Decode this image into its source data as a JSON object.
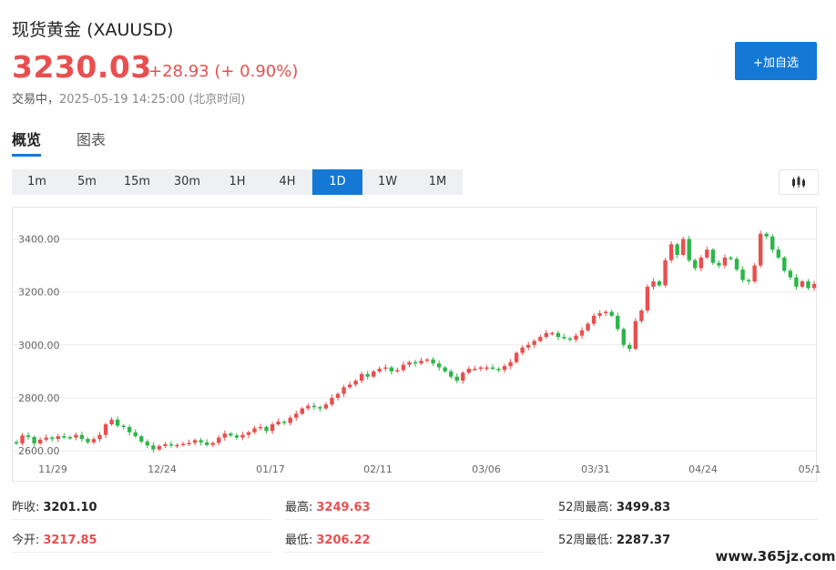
{
  "header": {
    "name": "现货黄金",
    "symbol": "(XAUUSD)",
    "price": "3230.03",
    "change": "+28.93 (+ 0.90%)",
    "status": "交易中，",
    "datetime": "2025-05-19 14:25:00",
    "timezone": "(北京时间)",
    "add_button": "+加自选"
  },
  "tabs": [
    {
      "label": "概览",
      "active": true
    },
    {
      "label": "图表",
      "active": false
    }
  ],
  "periods": [
    {
      "label": "1m",
      "active": false
    },
    {
      "label": "5m",
      "active": false
    },
    {
      "label": "15m",
      "active": false
    },
    {
      "label": "30m",
      "active": false
    },
    {
      "label": "1H",
      "active": false
    },
    {
      "label": "4H",
      "active": false
    },
    {
      "label": "1D",
      "active": true
    },
    {
      "label": "1W",
      "active": false
    },
    {
      "label": "1M",
      "active": false
    }
  ],
  "chart_type_icon": "candlestick-icon",
  "chart_data": {
    "type": "candlestick",
    "y_ticks": [
      "3400.00",
      "3200.00",
      "3000.00",
      "2800.00",
      "2600.00"
    ],
    "x_ticks": [
      "11/29",
      "12/24",
      "01/17",
      "02/11",
      "03/06",
      "03/31",
      "04/24",
      "05/1"
    ],
    "ylim": [
      2590,
      3505
    ],
    "up_color": "#e94f4f",
    "down_color": "#2db64a",
    "grid": true,
    "series_close": [
      2628,
      2658,
      2652,
      2628,
      2642,
      2650,
      2645,
      2655,
      2652,
      2650,
      2660,
      2645,
      2632,
      2644,
      2660,
      2700,
      2718,
      2695,
      2690,
      2670,
      2655,
      2635,
      2620,
      2605,
      2618,
      2625,
      2622,
      2622,
      2626,
      2630,
      2640,
      2632,
      2622,
      2630,
      2650,
      2665,
      2658,
      2650,
      2660,
      2670,
      2685,
      2690,
      2675,
      2700,
      2710,
      2705,
      2725,
      2740,
      2760,
      2770,
      2765,
      2760,
      2775,
      2800,
      2815,
      2840,
      2850,
      2865,
      2890,
      2880,
      2900,
      2910,
      2915,
      2900,
      2905,
      2925,
      2935,
      2930,
      2940,
      2945,
      2930,
      2915,
      2900,
      2880,
      2865,
      2895,
      2910,
      2910,
      2915,
      2915,
      2910,
      2905,
      2920,
      2935,
      2970,
      2990,
      3000,
      3015,
      3030,
      3045,
      3045,
      3030,
      3025,
      3020,
      3035,
      3055,
      3080,
      3110,
      3120,
      3125,
      3110,
      3060,
      3000,
      2985,
      3090,
      3130,
      3220,
      3240,
      3225,
      3320,
      3380,
      3340,
      3400,
      3320,
      3290,
      3330,
      3360,
      3310,
      3300,
      3330,
      3325,
      3285,
      3245,
      3240,
      3300,
      3420,
      3410,
      3360,
      3330,
      3280,
      3255,
      3220,
      3240,
      3215,
      3230
    ]
  },
  "stats": [
    {
      "label": "昨收:",
      "value": "3201.10",
      "color": "#222222"
    },
    {
      "label": "最高:",
      "value": "3249.63",
      "color": "#e94f4f"
    },
    {
      "label": "52周最高:",
      "value": "3499.83",
      "color": "#222222"
    },
    {
      "label": "今开:",
      "value": "3217.85",
      "color": "#e94f4f"
    },
    {
      "label": "最低:",
      "value": "3206.22",
      "color": "#e94f4f"
    },
    {
      "label": "52周最低:",
      "value": "2287.37",
      "color": "#222222"
    }
  ],
  "watermark": "www.365jz.com"
}
